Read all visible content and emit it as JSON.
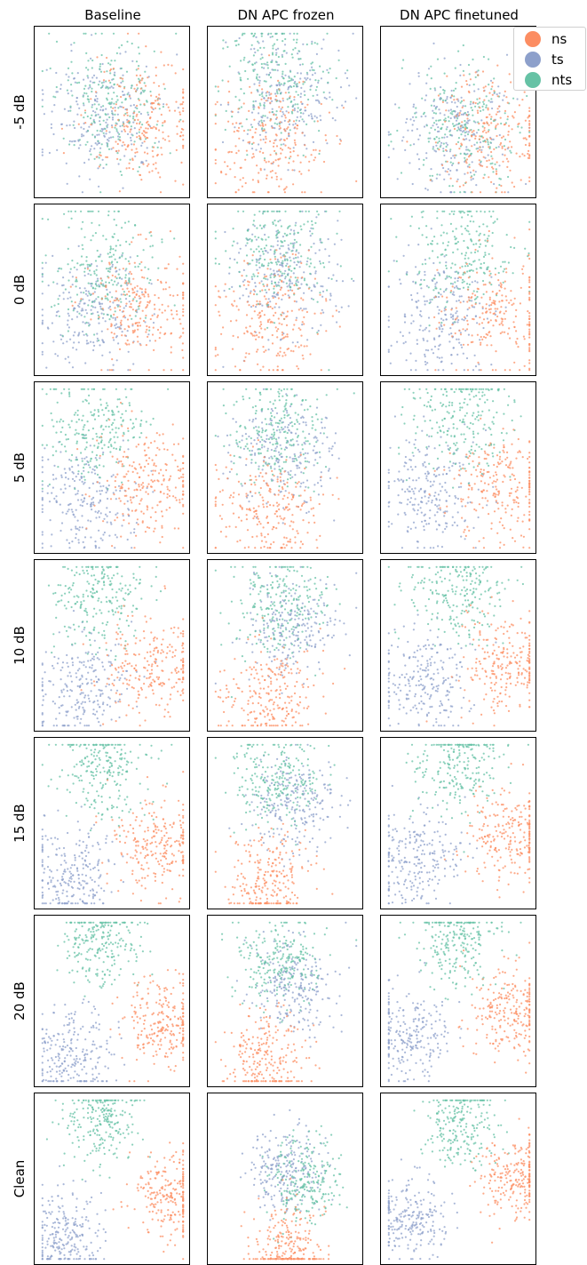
{
  "chart_data": {
    "type": "scatter",
    "title": "",
    "columns": [
      "Baseline",
      "DN APC frozen",
      "DN APC finetuned"
    ],
    "rows": [
      "-5 dB",
      "0 dB",
      "5 dB",
      "10 dB",
      "15 dB",
      "20 dB",
      "Clean"
    ],
    "xlabel": "",
    "ylabel": "",
    "xlim": [
      0,
      1
    ],
    "ylim": [
      0,
      1
    ],
    "grid": false,
    "legend_position": "top-right",
    "ticks": "none",
    "series": [
      {
        "name": "ns",
        "color": "#fc8d62"
      },
      {
        "name": "ts",
        "color": "#8da0cb"
      },
      {
        "name": "nts",
        "color": "#66c2a5"
      }
    ],
    "points_per_series_per_panel": 230,
    "cluster_centers": {
      "Baseline": [
        {
          "ns": [
            0.7,
            0.55
          ],
          "ts": [
            0.42,
            0.52
          ],
          "nts": [
            0.5,
            0.42
          ]
        },
        {
          "ns": [
            0.68,
            0.58
          ],
          "ts": [
            0.36,
            0.62
          ],
          "nts": [
            0.45,
            0.38
          ]
        },
        {
          "ns": [
            0.72,
            0.6
          ],
          "ts": [
            0.3,
            0.68
          ],
          "nts": [
            0.4,
            0.28
          ]
        },
        {
          "ns": [
            0.74,
            0.62
          ],
          "ts": [
            0.28,
            0.74
          ],
          "nts": [
            0.42,
            0.22
          ]
        },
        {
          "ns": [
            0.78,
            0.62
          ],
          "ts": [
            0.25,
            0.78
          ],
          "nts": [
            0.43,
            0.18
          ]
        },
        {
          "ns": [
            0.8,
            0.62
          ],
          "ts": [
            0.24,
            0.8
          ],
          "nts": [
            0.43,
            0.16
          ]
        },
        {
          "ns": [
            0.86,
            0.58
          ],
          "ts": [
            0.2,
            0.82
          ],
          "nts": [
            0.44,
            0.16
          ]
        }
      ],
      "DN APC frozen": [
        {
          "ns": [
            0.38,
            0.68
          ],
          "ts": [
            0.5,
            0.4
          ],
          "nts": [
            0.45,
            0.3
          ]
        },
        {
          "ns": [
            0.38,
            0.65
          ],
          "ts": [
            0.5,
            0.4
          ],
          "nts": [
            0.45,
            0.28
          ]
        },
        {
          "ns": [
            0.38,
            0.72
          ],
          "ts": [
            0.5,
            0.42
          ],
          "nts": [
            0.45,
            0.28
          ]
        },
        {
          "ns": [
            0.38,
            0.78
          ],
          "ts": [
            0.55,
            0.4
          ],
          "nts": [
            0.45,
            0.26
          ]
        },
        {
          "ns": [
            0.38,
            0.82
          ],
          "ts": [
            0.55,
            0.4
          ],
          "nts": [
            0.45,
            0.24
          ]
        },
        {
          "ns": [
            0.38,
            0.82
          ],
          "ts": [
            0.55,
            0.4
          ],
          "nts": [
            0.45,
            0.26
          ]
        },
        {
          "ns": [
            0.52,
            0.9
          ],
          "ts": [
            0.5,
            0.45
          ],
          "nts": [
            0.6,
            0.5
          ]
        }
      ],
      "DN APC finetuned": [
        {
          "ns": [
            0.72,
            0.62
          ],
          "ts": [
            0.48,
            0.6
          ],
          "nts": [
            0.52,
            0.55
          ]
        },
        {
          "ns": [
            0.75,
            0.62
          ],
          "ts": [
            0.38,
            0.64
          ],
          "nts": [
            0.5,
            0.3
          ]
        },
        {
          "ns": [
            0.78,
            0.62
          ],
          "ts": [
            0.3,
            0.64
          ],
          "nts": [
            0.5,
            0.2
          ]
        },
        {
          "ns": [
            0.8,
            0.62
          ],
          "ts": [
            0.28,
            0.68
          ],
          "nts": [
            0.48,
            0.18
          ]
        },
        {
          "ns": [
            0.82,
            0.58
          ],
          "ts": [
            0.22,
            0.7
          ],
          "nts": [
            0.48,
            0.16
          ]
        },
        {
          "ns": [
            0.82,
            0.55
          ],
          "ts": [
            0.2,
            0.68
          ],
          "nts": [
            0.48,
            0.15
          ]
        },
        {
          "ns": [
            0.86,
            0.5
          ],
          "ts": [
            0.18,
            0.72
          ],
          "nts": [
            0.52,
            0.18
          ]
        }
      ]
    }
  }
}
